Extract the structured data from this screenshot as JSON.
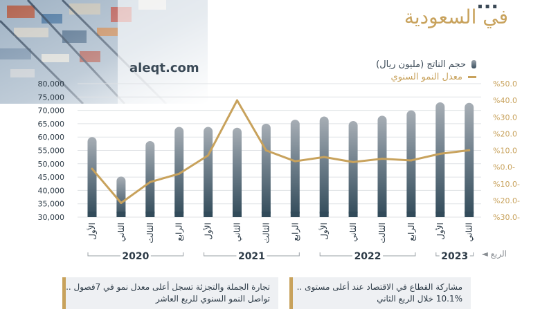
{
  "header": {
    "title_line1": "...",
    "title_line2": "في السعودية",
    "site": "aleqt.com"
  },
  "legend": {
    "bars_label": "حجم الناتج (مليون ريال)",
    "line_label": "معدل النمو السنوي"
  },
  "quarter_axis_label": "الربع",
  "boxes": [
    {
      "line1": "مشاركة القطاع في الاقتصاد عند أعلى مستوى ..",
      "line2": "10.1%  خلال الربع الثاني"
    },
    {
      "line1": "تجارة الجملة والتجزئة تسجل أعلى معدل نمو في 7فصول ..",
      "line2": "تواصل النمو السنوي للربع العاشر"
    }
  ],
  "colors": {
    "gold": "#c8a25c",
    "bar_top": "#a7aeb5",
    "bar_bottom": "#324b5a",
    "text_dark": "#2d3b47"
  },
  "chart_data": {
    "type": "bar+line",
    "categories": [
      "الأول",
      "الثاني",
      "الثالث",
      "الرابع",
      "الأول",
      "الثاني",
      "الثالث",
      "الرابع",
      "الأول",
      "الثاني",
      "الثالث",
      "الرابع",
      "الأول",
      "الثاني"
    ],
    "years": [
      {
        "label": "2020",
        "quarters": 4
      },
      {
        "label": "2021",
        "quarters": 4
      },
      {
        "label": "2022",
        "quarters": 4
      },
      {
        "label": "2023",
        "quarters": 2
      }
    ],
    "series": [
      {
        "name": "حجم الناتج (مليون ريال)",
        "type": "bar",
        "axis": "left",
        "values": [
          60000,
          45200,
          58500,
          63800,
          63800,
          63500,
          65000,
          66500,
          67700,
          66000,
          68000,
          70000,
          73000,
          72800
        ]
      },
      {
        "name": "معدل النمو السنوي",
        "type": "line",
        "axis": "right",
        "values": [
          -1,
          -21.5,
          -9,
          -4,
          7,
          40,
          10,
          3.5,
          6,
          3,
          5,
          4,
          8,
          10.1
        ]
      }
    ],
    "left_axis": {
      "ylim": [
        30000,
        80000
      ],
      "ticks": [
        "30,000",
        "35,000",
        "40,000",
        "45,000",
        "50,000",
        "55,000",
        "60,000",
        "65,000",
        "70,000",
        "75,000",
        "80,000"
      ]
    },
    "right_axis": {
      "ylim": [
        -30,
        50
      ],
      "ticks": [
        "%30.0-",
        "%20.0-",
        "%10.0-",
        "%0.0-",
        "%10.0",
        "%20.0",
        "%30.0",
        "%40.0",
        "%50.0"
      ]
    },
    "grid": true,
    "legend_position": "top-right"
  }
}
